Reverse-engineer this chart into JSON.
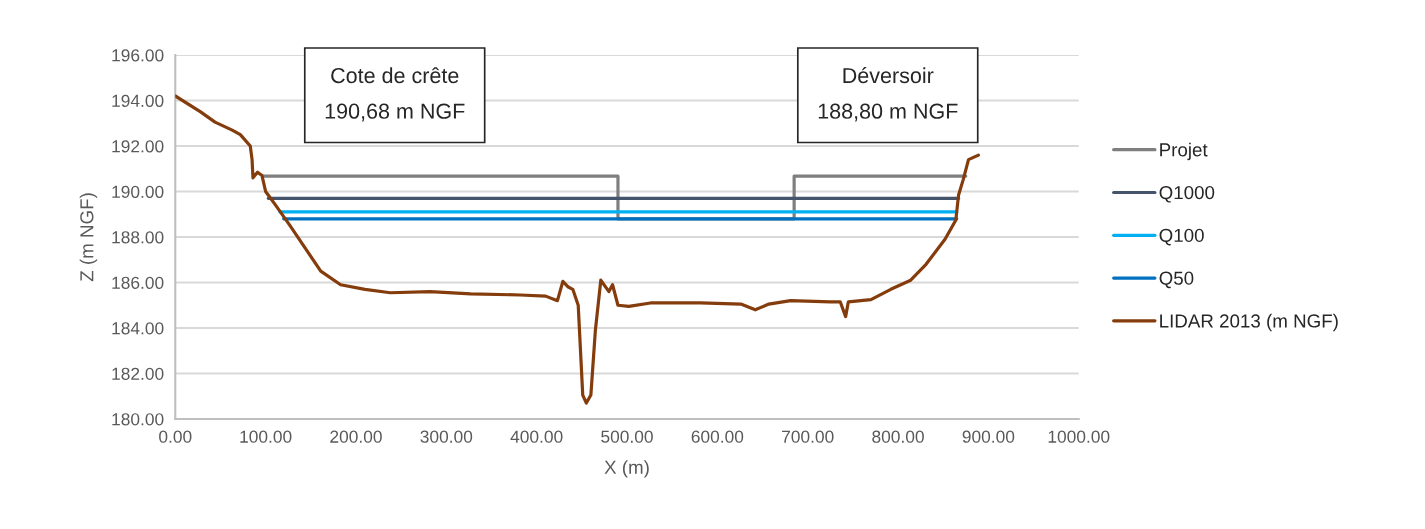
{
  "chart_data": {
    "type": "line",
    "xlabel": "X (m)",
    "ylabel": "Z (m NGF)",
    "annotations": [
      "Cote de crête\n190,68 m NGF",
      "Déversoir\n188,80 m NGF"
    ],
    "series": [
      {
        "name": "Projet",
        "color": "#7f7f7f",
        "x": [
          97,
          490,
          490,
          685,
          685,
          875
        ],
        "values": [
          190.68,
          190.68,
          188.8,
          188.8,
          190.68,
          190.68
        ]
      },
      {
        "name": "Q1000",
        "color": "#44546a",
        "x": [
          103,
          867
        ],
        "values": [
          189.7,
          189.7
        ]
      },
      {
        "name": "Q100",
        "color": "#00b0f0",
        "x": [
          116,
          865
        ],
        "values": [
          189.1,
          189.1
        ]
      },
      {
        "name": "Q50",
        "color": "#0070c0",
        "x": [
          120,
          865
        ],
        "values": [
          188.8,
          188.8
        ]
      },
      {
        "name": "LIDAR 2013 (m NGF)",
        "color": "#843c0c",
        "x": [
          0,
          28,
          44,
          63,
          72,
          83,
          85,
          86,
          91,
          96,
          100,
          111,
          127,
          144,
          161,
          183,
          210,
          238,
          282,
          327,
          382,
          410,
          423,
          429,
          435,
          440,
          446,
          451,
          455,
          460,
          465,
          471,
          480,
          484,
          490,
          502,
          526,
          581,
          626,
          642,
          657,
          681,
          725,
          736,
          742,
          745,
          770,
          792,
          814,
          831,
          852,
          864,
          867,
          872,
          878,
          889
        ],
        "values": [
          194.2,
          193.5,
          193.05,
          192.7,
          192.5,
          192.0,
          191.4,
          190.6,
          190.85,
          190.7,
          190.0,
          189.4,
          188.5,
          187.5,
          186.5,
          185.9,
          185.7,
          185.55,
          185.6,
          185.5,
          185.45,
          185.4,
          185.2,
          186.05,
          185.8,
          185.7,
          185.0,
          181.05,
          180.7,
          181.05,
          183.9,
          186.1,
          185.6,
          185.9,
          185.0,
          184.95,
          185.1,
          185.1,
          185.05,
          184.8,
          185.05,
          185.2,
          185.15,
          185.15,
          184.5,
          185.15,
          185.25,
          185.7,
          186.1,
          186.8,
          187.9,
          188.75,
          189.85,
          190.5,
          191.4,
          191.6
        ]
      }
    ],
    "xlim": [
      0,
      1000
    ],
    "xticks": [
      {
        "value": 0,
        "label": "0.00"
      },
      {
        "value": 100,
        "label": "100.00"
      },
      {
        "value": 200,
        "label": "200.00"
      },
      {
        "value": 300,
        "label": "300.00"
      },
      {
        "value": 400,
        "label": "400.00"
      },
      {
        "value": 500,
        "label": "500.00"
      },
      {
        "value": 600,
        "label": "600.00"
      },
      {
        "value": 700,
        "label": "700.00"
      },
      {
        "value": 800,
        "label": "800.00"
      },
      {
        "value": 900,
        "label": "900.00"
      },
      {
        "value": 1000,
        "label": "1000.00"
      }
    ],
    "ylim": [
      180,
      196
    ],
    "yticks": [
      {
        "value": 180,
        "label": "180.00"
      },
      {
        "value": 182,
        "label": "182.00"
      },
      {
        "value": 184,
        "label": "184.00"
      },
      {
        "value": 186,
        "label": "186.00"
      },
      {
        "value": 188,
        "label": "188.00"
      },
      {
        "value": 190,
        "label": "190.00"
      },
      {
        "value": 192,
        "label": "192.00"
      },
      {
        "value": 194,
        "label": "194.00"
      },
      {
        "value": 196,
        "label": "196.00"
      }
    ],
    "grid": "y",
    "legend": "right",
    "marker": "none",
    "line_style": "solid"
  }
}
